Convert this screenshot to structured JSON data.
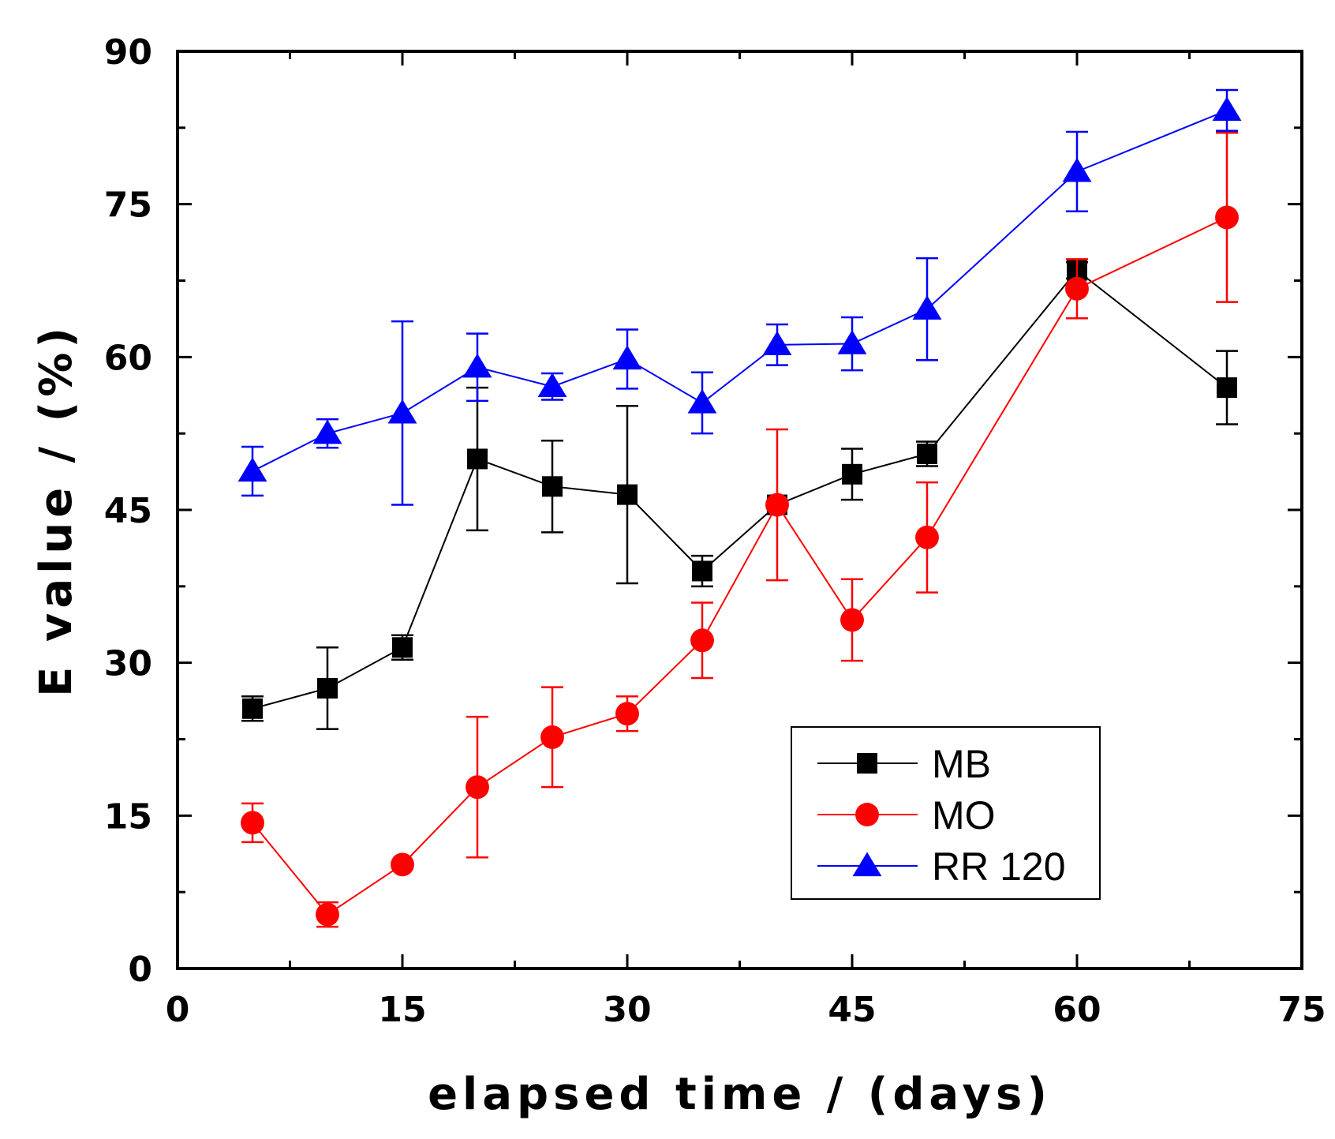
{
  "chart_data": {
    "type": "line",
    "title": "",
    "xlabel": "elapsed time / (days)",
    "ylabel": "E value / (%)",
    "xlim": [
      0,
      75
    ],
    "ylim": [
      0,
      90
    ],
    "xticks": [
      0,
      15,
      30,
      45,
      60,
      75
    ],
    "yticks": [
      0,
      15,
      30,
      45,
      60,
      75,
      90
    ],
    "xtick_labels": [
      "0",
      "15",
      "30",
      "45",
      "60",
      "75"
    ],
    "ytick_labels": [
      "0",
      "15",
      "30",
      "45",
      "60",
      "75",
      "90"
    ],
    "grid": false,
    "legend_position": "lower-right",
    "series": [
      {
        "name": "MB",
        "color": "#000000",
        "marker": "square",
        "x": [
          5,
          10,
          15,
          20,
          25,
          30,
          35,
          40,
          45,
          50,
          60,
          70
        ],
        "y": [
          25.5,
          27.5,
          31.5,
          50,
          47.3,
          46.5,
          39,
          45.5,
          48.5,
          50.5,
          68.5,
          57
        ],
        "err": [
          1.2,
          4,
          1.2,
          7,
          4.5,
          8.7,
          1.5,
          0,
          2.5,
          1.2,
          0.8,
          3.6
        ]
      },
      {
        "name": "MO",
        "color": "#ff0000",
        "marker": "circle",
        "x": [
          5,
          10,
          15,
          20,
          25,
          30,
          35,
          40,
          45,
          50,
          60,
          70
        ],
        "y": [
          14.3,
          5.3,
          10.2,
          17.8,
          22.7,
          25,
          32.2,
          45.5,
          34.2,
          42.3,
          66.7,
          73.7
        ],
        "err": [
          1.9,
          1.2,
          0,
          6.9,
          4.9,
          1.7,
          3.7,
          7.4,
          4,
          5.4,
          2.9,
          8.3
        ]
      },
      {
        "name": "RR 120",
        "color": "#0000ff",
        "marker": "triangle",
        "x": [
          5,
          10,
          15,
          20,
          25,
          30,
          35,
          40,
          45,
          50,
          60,
          70
        ],
        "y": [
          48.8,
          52.5,
          54.5,
          59,
          57.1,
          59.8,
          55.5,
          61.2,
          61.3,
          64.7,
          78.2,
          84.2
        ],
        "err": [
          2.4,
          1.4,
          9,
          3.3,
          1.3,
          2.9,
          3,
          2,
          2.6,
          5,
          3.9,
          2
        ]
      }
    ]
  }
}
